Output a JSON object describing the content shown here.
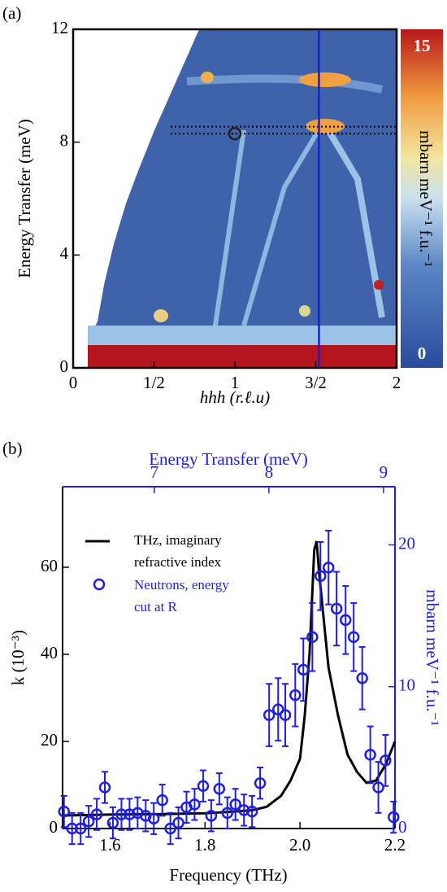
{
  "chart_data": [
    {
      "type": "heatmap",
      "panel_label": "(a)",
      "xlabel": "hhh (r.ℓ.u)",
      "ylabel": "Energy Transfer (meV)",
      "colorbar_label": "mbarn meV⁻¹ f.u.⁻¹",
      "xlim": [
        0,
        2
      ],
      "xticks": [
        0,
        {
          "value": 0.5,
          "label": "1/2"
        },
        1,
        {
          "value": 1.5,
          "label": "3/2"
        },
        2
      ],
      "ylim": [
        0,
        12
      ],
      "yticks": [
        0,
        4,
        8,
        12
      ],
      "clim": [
        0,
        15
      ],
      "cticks": [
        0,
        15
      ],
      "vline_x": 1.52,
      "vline_color": "#1a1ae6",
      "hlines_y": [
        8.3,
        8.55
      ],
      "marker": [
        1,
        8.3
      ]
    },
    {
      "type": "line",
      "panel_label": "(b)",
      "xlabel": "Frequency (THz)",
      "ylabel": "k (10⁻³)",
      "x2label": "Energy Transfer (meV)",
      "y2label": "mbarn meV⁻¹ f.u.⁻¹",
      "xlim": [
        1.5,
        2.2
      ],
      "xticks": [
        1.6,
        1.8,
        {
          "value": 2.0,
          "label": "2.0"
        },
        2.2
      ],
      "ylim": [
        0,
        78.5
      ],
      "yticks": [
        0,
        20,
        40,
        60
      ],
      "x2lim": [
        6.2,
        9.1
      ],
      "x2ticks": [
        7,
        8,
        9
      ],
      "y2lim": [
        0,
        24.1
      ],
      "y2ticks": [
        0,
        10,
        20
      ],
      "series": [
        {
          "name": "THz, imaginary refractive index",
          "color": "#000000",
          "type": "line",
          "x": [
            1.5,
            1.6,
            1.7,
            1.8,
            1.85,
            1.9,
            1.93,
            1.96,
            1.98,
            2.0,
            2.01,
            2.02,
            2.025,
            2.03,
            2.035,
            2.04,
            2.05,
            2.06,
            2.08,
            2.1,
            2.12,
            2.14,
            2.16,
            2.18,
            2.2
          ],
          "values": [
            3.0,
            3.2,
            3.3,
            3.5,
            3.8,
            4.2,
            5.0,
            7.5,
            11,
            16,
            26,
            40,
            52,
            64,
            66,
            59,
            48,
            37,
            26,
            17,
            13,
            10.5,
            11,
            14.6,
            20
          ]
        },
        {
          "name": "Neutrons, energy cut at R",
          "color": "#1f1fe0",
          "type": "scatter",
          "axis": "y2",
          "x": [
            1.503,
            1.52,
            1.538,
            1.555,
            1.572,
            1.589,
            1.606,
            1.624,
            1.641,
            1.658,
            1.675,
            1.692,
            1.71,
            1.727,
            1.744,
            1.761,
            1.778,
            1.796,
            1.813,
            1.83,
            1.847,
            1.864,
            1.882,
            1.899,
            1.916,
            1.935,
            1.954,
            1.969,
            1.99,
            2.007,
            2.026,
            2.043,
            2.06,
            2.077,
            2.096,
            2.113,
            2.131,
            2.148,
            2.165,
            2.18,
            2.197
          ],
          "values": [
            1.2,
            0,
            0,
            0.5,
            1.0,
            2.9,
            0.4,
            1.0,
            1.0,
            1.1,
            0.9,
            0.7,
            2.0,
            0,
            0.4,
            1.5,
            1.7,
            3.0,
            0.9,
            2.8,
            1.1,
            1.7,
            1.3,
            1.2,
            3.2,
            8.0,
            8.4,
            8.0,
            9.4,
            11.2,
            13.5,
            17.8,
            18.4,
            15.5,
            14.7,
            13.5,
            10.6,
            5.2,
            2.9,
            4.8,
            0.8
          ],
          "errors": [
            1.1,
            1.1,
            1.1,
            1.1,
            1.1,
            1.1,
            1.1,
            1.1,
            1.1,
            1.1,
            1.1,
            1.1,
            1.1,
            1.1,
            1.1,
            1.1,
            1.1,
            1.1,
            1.1,
            1.1,
            1.1,
            1.1,
            1.1,
            1.1,
            1.1,
            2.2,
            2.2,
            2.2,
            2.2,
            2.2,
            2.4,
            2.4,
            2.6,
            2.6,
            2.4,
            2.4,
            2.2,
            2.0,
            1.8,
            1.8,
            1.1
          ]
        }
      ]
    }
  ]
}
